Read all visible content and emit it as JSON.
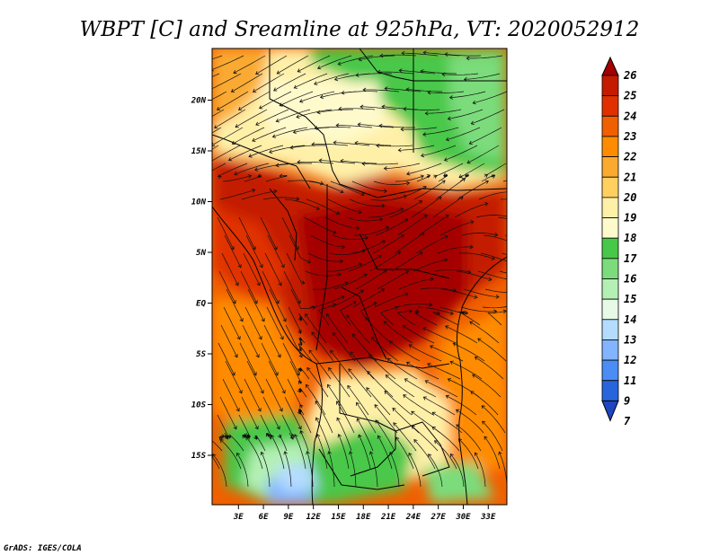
{
  "title": "WBPT [C] and Sreamline at 925hPa, VT: 2020052912",
  "credit": "GrADS: IGES/COLA",
  "map": {
    "lat_ticks": [
      "20N",
      "15N",
      "10N",
      "5N",
      "EQ",
      "5S",
      "10S",
      "15S"
    ],
    "lon_ticks": [
      "3E",
      "6E",
      "9E",
      "12E",
      "15E",
      "18E",
      "21E",
      "24E",
      "27E",
      "30E",
      "33E"
    ]
  },
  "colorbar": {
    "labels": [
      "26",
      "25",
      "24",
      "23",
      "22",
      "21",
      "20",
      "19",
      "18",
      "17",
      "16",
      "15",
      "14",
      "13",
      "12",
      "11",
      "9",
      "7"
    ],
    "colors": [
      "#a50000",
      "#c41a00",
      "#e03000",
      "#f06000",
      "#ff8c00",
      "#faaa30",
      "#ffd060",
      "#fff0a8",
      "#fffacc",
      "#48c848",
      "#7cdc7c",
      "#b4f0b4",
      "#e6fae6",
      "#b4dcff",
      "#82b4ff",
      "#4b8cf5",
      "#2864dc",
      "#1e46be"
    ]
  },
  "chart_data": {
    "type": "heatmap",
    "title": "WBPT [C] and Sreamline at 925hPa, VT: 2020052912",
    "x_ticks": [
      "3E",
      "6E",
      "9E",
      "12E",
      "15E",
      "18E",
      "21E",
      "24E",
      "27E",
      "30E",
      "33E"
    ],
    "y_ticks": [
      "20N",
      "15N",
      "10N",
      "5N",
      "EQ",
      "5S",
      "10S",
      "15S"
    ],
    "xlim": [
      "0E",
      "35E"
    ],
    "ylim": [
      "20S",
      "25N"
    ],
    "legend_levels": [
      7,
      9,
      11,
      12,
      13,
      14,
      15,
      16,
      17,
      18,
      19,
      20,
      21,
      22,
      23,
      24,
      25,
      26
    ]
  }
}
